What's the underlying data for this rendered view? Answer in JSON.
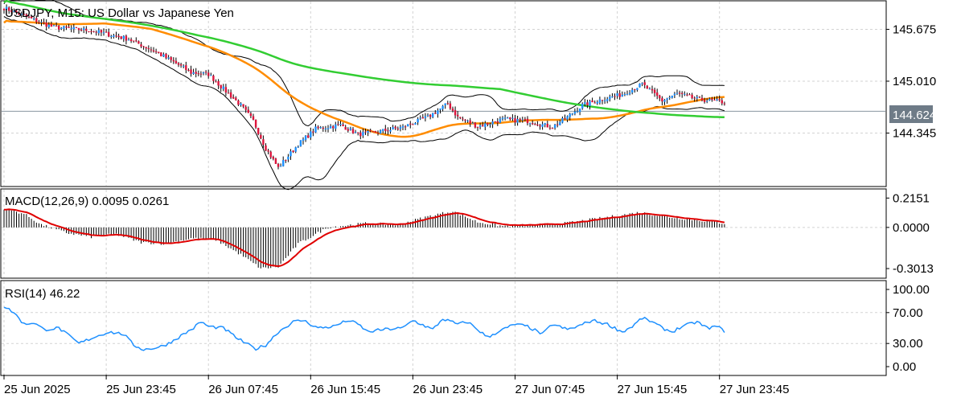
{
  "chart_data": {
    "type": "candlestick",
    "symbol": "USDJPY",
    "timeframe": "M15",
    "description": "US Dollar vs Japanese Yen",
    "main_title": "USDJPY, M15:  US Dollar vs Japanese Yen",
    "price_axis": {
      "ticks": [
        "145.675",
        "145.010",
        "144.345"
      ],
      "ylim": [
        143.68,
        146.02
      ]
    },
    "current_price": "144.624",
    "time_ticks": [
      "25 Jun 2025",
      "25 Jun 23:45",
      "26 Jun 07:45",
      "26 Jun 15:45",
      "26 Jun 23:45",
      "27 Jun 07:45",
      "27 Jun 15:45",
      "27 Jun 23:45"
    ],
    "price_path": [
      [
        0,
        145.95
      ],
      [
        10,
        145.82
      ],
      [
        20,
        145.7
      ],
      [
        35,
        145.66
      ],
      [
        50,
        145.55
      ],
      [
        60,
        145.4
      ],
      [
        70,
        145.22
      ],
      [
        75,
        145.12
      ],
      [
        82,
        145.1
      ],
      [
        90,
        144.85
      ],
      [
        95,
        144.7
      ],
      [
        100,
        144.5
      ],
      [
        105,
        144.15
      ],
      [
        110,
        143.9
      ],
      [
        118,
        144.2
      ],
      [
        125,
        144.4
      ],
      [
        135,
        144.45
      ],
      [
        142,
        144.33
      ],
      [
        148,
        144.35
      ],
      [
        160,
        144.42
      ],
      [
        170,
        144.55
      ],
      [
        178,
        144.72
      ],
      [
        182,
        144.55
      ],
      [
        190,
        144.43
      ],
      [
        200,
        144.52
      ],
      [
        210,
        144.5
      ],
      [
        220,
        144.42
      ],
      [
        226,
        144.55
      ],
      [
        232,
        144.7
      ],
      [
        240,
        144.78
      ],
      [
        248,
        144.84
      ],
      [
        256,
        144.97
      ],
      [
        264,
        144.76
      ],
      [
        270,
        144.85
      ],
      [
        278,
        144.78
      ],
      [
        289,
        144.74
      ]
    ],
    "indicators": [
      {
        "name": "Bollinger Bands",
        "color": "#000000"
      },
      {
        "name": "MA slow",
        "color": "#32CD32"
      },
      {
        "name": "MA fast",
        "color": "#FF8C00"
      }
    ],
    "macd": {
      "label": "MACD(12,26,9) 0.0095 0.0261",
      "ticks": [
        "0.2151",
        "0.0000",
        "-0.3013"
      ],
      "ylim": [
        -0.36,
        0.27
      ],
      "signal_color": "#E00000",
      "path": [
        [
          0,
          0.14
        ],
        [
          8,
          0.1
        ],
        [
          15,
          0.02
        ],
        [
          25,
          -0.04
        ],
        [
          35,
          -0.07
        ],
        [
          45,
          -0.05
        ],
        [
          55,
          -0.11
        ],
        [
          65,
          -0.12
        ],
        [
          75,
          -0.08
        ],
        [
          85,
          -0.09
        ],
        [
          95,
          -0.2
        ],
        [
          103,
          -0.3
        ],
        [
          110,
          -0.29
        ],
        [
          118,
          -0.12
        ],
        [
          130,
          0.0
        ],
        [
          145,
          0.03
        ],
        [
          158,
          0.02
        ],
        [
          170,
          0.08
        ],
        [
          180,
          0.12
        ],
        [
          190,
          0.04
        ],
        [
          200,
          0.01
        ],
        [
          215,
          0.02
        ],
        [
          225,
          0.03
        ],
        [
          240,
          0.07
        ],
        [
          255,
          0.11
        ],
        [
          265,
          0.08
        ],
        [
          280,
          0.05
        ],
        [
          289,
          0.03
        ]
      ]
    },
    "rsi": {
      "label": "RSI(14) 46.22",
      "ticks": [
        "100.00",
        "70.00",
        "30.00",
        "0.00"
      ],
      "ylim": [
        0,
        100
      ],
      "color": "#1E90FF",
      "path": [
        [
          0,
          78
        ],
        [
          4,
          70
        ],
        [
          8,
          55
        ],
        [
          12,
          57
        ],
        [
          16,
          48
        ],
        [
          22,
          50
        ],
        [
          30,
          30
        ],
        [
          36,
          38
        ],
        [
          42,
          45
        ],
        [
          48,
          42
        ],
        [
          52,
          28
        ],
        [
          56,
          22
        ],
        [
          62,
          25
        ],
        [
          66,
          30
        ],
        [
          72,
          42
        ],
        [
          76,
          50
        ],
        [
          79,
          58
        ],
        [
          82,
          52
        ],
        [
          88,
          50
        ],
        [
          93,
          38
        ],
        [
          97,
          30
        ],
        [
          101,
          23
        ],
        [
          105,
          28
        ],
        [
          110,
          45
        ],
        [
          116,
          58
        ],
        [
          120,
          60
        ],
        [
          126,
          50
        ],
        [
          132,
          52
        ],
        [
          138,
          60
        ],
        [
          142,
          55
        ],
        [
          146,
          45
        ],
        [
          152,
          48
        ],
        [
          160,
          50
        ],
        [
          164,
          60
        ],
        [
          172,
          48
        ],
        [
          176,
          62
        ],
        [
          182,
          55
        ],
        [
          186,
          58
        ],
        [
          190,
          48
        ],
        [
          194,
          38
        ],
        [
          198,
          45
        ],
        [
          205,
          55
        ],
        [
          210,
          52
        ],
        [
          216,
          42
        ],
        [
          220,
          55
        ],
        [
          226,
          48
        ],
        [
          230,
          52
        ],
        [
          236,
          60
        ],
        [
          242,
          55
        ],
        [
          248,
          45
        ],
        [
          252,
          52
        ],
        [
          256,
          63
        ],
        [
          260,
          58
        ],
        [
          264,
          50
        ],
        [
          268,
          45
        ],
        [
          272,
          52
        ],
        [
          278,
          58
        ],
        [
          282,
          50
        ],
        [
          286,
          52
        ],
        [
          289,
          46
        ]
      ]
    }
  }
}
